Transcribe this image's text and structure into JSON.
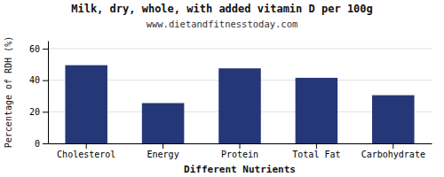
{
  "chart_data": {
    "type": "bar",
    "title": "Milk, dry, whole, with added vitamin D per 100g",
    "subtitle": "www.dietandfitnesstoday.com",
    "xlabel": "Different Nutrients",
    "ylabel": "Percentage of RDH (%)",
    "categories": [
      "Cholesterol",
      "Energy",
      "Protein",
      "Total Fat",
      "Carbohydrate"
    ],
    "values": [
      49.5,
      25.5,
      47.5,
      41.5,
      30.5
    ],
    "color": "#253777",
    "ylim": [
      0,
      65
    ],
    "yticks": [
      0,
      20,
      40,
      60
    ],
    "grid": true
  }
}
